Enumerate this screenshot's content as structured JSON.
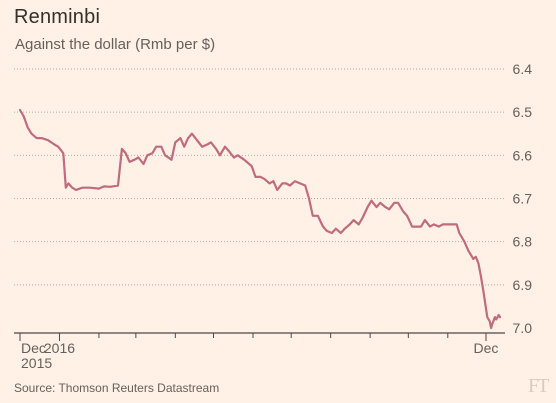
{
  "title": "Renminbi",
  "subtitle": "Against the dollar (Rmb per $)",
  "source": "Source: Thomson Reuters Datastream",
  "logo": "FT",
  "colors": {
    "background": "#fff1e5",
    "line": "#c06b7e",
    "grid": "#b3aca5",
    "text": "#66605c"
  },
  "chart_data": {
    "type": "line",
    "title": "Renminbi",
    "subtitle": "Against the dollar (Rmb per $)",
    "y_inverted": true,
    "ylim": [
      7.0,
      6.4
    ],
    "y_ticks": [
      "6.4",
      "6.5",
      "6.6",
      "6.7",
      "6.8",
      "6.9",
      "7.0"
    ],
    "x_tick_labels": [
      {
        "label": "Dec\n2015",
        "date": "2015-12-01"
      },
      {
        "label": "2016",
        "date": "2016-01-01"
      },
      {
        "label": "Dec",
        "date": "2016-12-01"
      }
    ],
    "x_range": [
      "2015-12-01",
      "2016-12-12"
    ],
    "grid": true,
    "series": [
      {
        "values": [
          [
            "2015-12-01",
            6.495
          ],
          [
            "2015-12-04",
            6.51
          ],
          [
            "2015-12-07",
            6.535
          ],
          [
            "2015-12-10",
            6.55
          ],
          [
            "2015-12-14",
            6.56
          ],
          [
            "2015-12-18",
            6.56
          ],
          [
            "2015-12-23",
            6.565
          ],
          [
            "2015-12-28",
            6.575
          ],
          [
            "2015-12-31",
            6.58
          ],
          [
            "2016-01-04",
            6.595
          ],
          [
            "2016-01-06",
            6.675
          ],
          [
            "2016-01-08",
            6.665
          ],
          [
            "2016-01-11",
            6.675
          ],
          [
            "2016-01-14",
            6.68
          ],
          [
            "2016-01-19",
            6.675
          ],
          [
            "2016-01-25",
            6.675
          ],
          [
            "2016-02-01",
            6.677
          ],
          [
            "2016-02-05",
            6.672
          ],
          [
            "2016-02-10",
            6.673
          ],
          [
            "2016-02-16",
            6.67
          ],
          [
            "2016-02-19",
            6.585
          ],
          [
            "2016-02-22",
            6.595
          ],
          [
            "2016-02-25",
            6.615
          ],
          [
            "2016-02-29",
            6.61
          ],
          [
            "2016-03-03",
            6.605
          ],
          [
            "2016-03-07",
            6.62
          ],
          [
            "2016-03-10",
            6.6
          ],
          [
            "2016-03-14",
            6.595
          ],
          [
            "2016-03-17",
            6.58
          ],
          [
            "2016-03-21",
            6.58
          ],
          [
            "2016-03-24",
            6.6
          ],
          [
            "2016-03-29",
            6.61
          ],
          [
            "2016-04-01",
            6.57
          ],
          [
            "2016-04-05",
            6.56
          ],
          [
            "2016-04-08",
            6.58
          ],
          [
            "2016-04-11",
            6.56
          ],
          [
            "2016-04-14",
            6.55
          ],
          [
            "2016-04-18",
            6.565
          ],
          [
            "2016-04-22",
            6.58
          ],
          [
            "2016-04-26",
            6.575
          ],
          [
            "2016-04-29",
            6.57
          ],
          [
            "2016-05-03",
            6.585
          ],
          [
            "2016-05-06",
            6.6
          ],
          [
            "2016-05-10",
            6.58
          ],
          [
            "2016-05-13",
            6.59
          ],
          [
            "2016-05-17",
            6.605
          ],
          [
            "2016-05-20",
            6.6
          ],
          [
            "2016-05-25",
            6.61
          ],
          [
            "2016-05-31",
            6.625
          ],
          [
            "2016-06-03",
            6.65
          ],
          [
            "2016-06-07",
            6.65
          ],
          [
            "2016-06-10",
            6.655
          ],
          [
            "2016-06-14",
            6.665
          ],
          [
            "2016-06-17",
            6.66
          ],
          [
            "2016-06-20",
            6.68
          ],
          [
            "2016-06-24",
            6.665
          ],
          [
            "2016-06-27",
            6.665
          ],
          [
            "2016-06-30",
            6.67
          ],
          [
            "2016-07-04",
            6.66
          ],
          [
            "2016-07-08",
            6.665
          ],
          [
            "2016-07-12",
            6.67
          ],
          [
            "2016-07-15",
            6.7
          ],
          [
            "2016-07-18",
            6.74
          ],
          [
            "2016-07-22",
            6.74
          ],
          [
            "2016-07-26",
            6.765
          ],
          [
            "2016-07-29",
            6.775
          ],
          [
            "2016-08-02",
            6.78
          ],
          [
            "2016-08-05",
            6.77
          ],
          [
            "2016-08-09",
            6.78
          ],
          [
            "2016-08-12",
            6.77
          ],
          [
            "2016-08-16",
            6.76
          ],
          [
            "2016-08-19",
            6.75
          ],
          [
            "2016-08-23",
            6.76
          ],
          [
            "2016-08-26",
            6.745
          ],
          [
            "2016-08-30",
            6.72
          ],
          [
            "2016-09-02",
            6.705
          ],
          [
            "2016-09-06",
            6.72
          ],
          [
            "2016-09-09",
            6.71
          ],
          [
            "2016-09-13",
            6.72
          ],
          [
            "2016-09-16",
            6.725
          ],
          [
            "2016-09-20",
            6.71
          ],
          [
            "2016-09-23",
            6.71
          ],
          [
            "2016-09-27",
            6.73
          ],
          [
            "2016-09-30",
            6.74
          ],
          [
            "2016-10-04",
            6.765
          ],
          [
            "2016-10-07",
            6.765
          ],
          [
            "2016-10-11",
            6.765
          ],
          [
            "2016-10-14",
            6.75
          ],
          [
            "2016-10-18",
            6.765
          ],
          [
            "2016-10-21",
            6.76
          ],
          [
            "2016-10-25",
            6.765
          ],
          [
            "2016-10-28",
            6.76
          ],
          [
            "2016-11-01",
            6.76
          ],
          [
            "2016-11-04",
            6.76
          ],
          [
            "2016-11-08",
            6.76
          ],
          [
            "2016-11-10",
            6.78
          ],
          [
            "2016-11-14",
            6.8
          ],
          [
            "2016-11-17",
            6.82
          ],
          [
            "2016-11-21",
            6.84
          ],
          [
            "2016-11-23",
            6.835
          ],
          [
            "2016-11-25",
            6.85
          ],
          [
            "2016-11-27",
            6.88
          ],
          [
            "2016-11-29",
            6.915
          ],
          [
            "2016-12-01",
            6.955
          ],
          [
            "2016-12-02",
            6.975
          ],
          [
            "2016-12-04",
            6.985
          ],
          [
            "2016-12-05",
            7.0
          ],
          [
            "2016-12-06",
            6.99
          ],
          [
            "2016-12-08",
            6.975
          ],
          [
            "2016-12-09",
            6.98
          ],
          [
            "2016-12-11",
            6.97
          ],
          [
            "2016-12-12",
            6.975
          ]
        ]
      }
    ]
  }
}
